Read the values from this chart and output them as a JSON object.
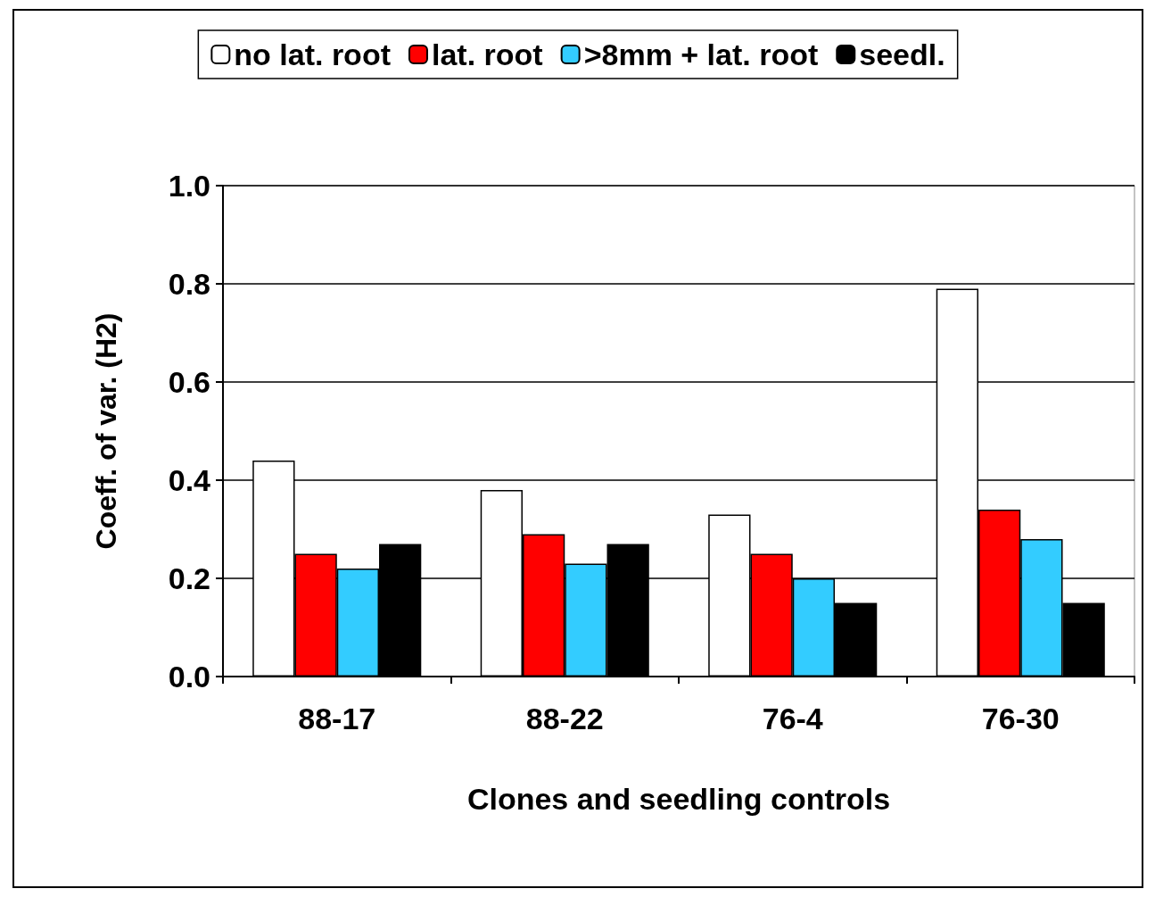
{
  "chart_data": {
    "type": "bar",
    "xlabel": "Clones and seedling controls",
    "ylabel": "Coeff. of var. (H2)",
    "categories": [
      "88-17",
      "88-22",
      "76-4",
      "76-30"
    ],
    "series": [
      {
        "name": "no lat. root",
        "color": "#ffffff",
        "values": [
          0.44,
          0.38,
          0.33,
          0.79
        ]
      },
      {
        "name": "lat. root",
        "color": "#ff0000",
        "values": [
          0.25,
          0.29,
          0.25,
          0.34
        ]
      },
      {
        "name": ">8mm + lat. root",
        "color": "#33ccff",
        "values": [
          0.22,
          0.23,
          0.2,
          0.28
        ]
      },
      {
        "name": "seedl.",
        "color": "#000000",
        "values": [
          0.27,
          0.27,
          0.15,
          0.15
        ]
      }
    ],
    "ylim": [
      0,
      1
    ],
    "yticks": [
      {
        "value": 0,
        "label": "0.0"
      },
      0.2,
      0.4,
      0.6,
      0.8,
      {
        "value": 1,
        "label": "1.0"
      }
    ],
    "grid": "y",
    "legend": "top"
  }
}
